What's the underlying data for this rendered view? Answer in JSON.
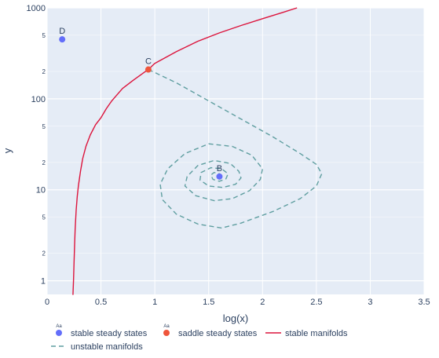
{
  "chart_data": {
    "type": "line",
    "xlabel": "log(x)",
    "ylabel": "y",
    "xlim": [
      0,
      3.5
    ],
    "ylim_log10": [
      -0.15,
      3.0
    ],
    "y_scale": "log",
    "grid": true,
    "legend_placement": "bottom-left",
    "background": "#e5ecf6",
    "x_ticks": [
      "0",
      "0.5",
      "1",
      "1.5",
      "2",
      "2.5",
      "3",
      "3.5"
    ],
    "y_major_ticks": [
      {
        "value": 1,
        "label": "1"
      },
      {
        "value": 10,
        "label": "10"
      },
      {
        "value": 100,
        "label": "100"
      },
      {
        "value": 1000,
        "label": "1000"
      }
    ],
    "y_minor_ticks": [
      {
        "value": 2,
        "label": "2"
      },
      {
        "value": 5,
        "label": "5"
      },
      {
        "value": 20,
        "label": "2"
      },
      {
        "value": 50,
        "label": "5"
      },
      {
        "value": 200,
        "label": "2"
      },
      {
        "value": 500,
        "label": "5"
      }
    ],
    "points": [
      {
        "name": "D",
        "x": 0.14,
        "y": 450,
        "kind": "stable",
        "color": "#636efa"
      },
      {
        "name": "C",
        "x": 0.94,
        "y": 210,
        "kind": "saddle",
        "color": "#ef553b"
      },
      {
        "name": "B",
        "x": 1.6,
        "y": 14,
        "kind": "stable",
        "color": "#636efa"
      }
    ],
    "series": [
      {
        "name": "stable manifolds",
        "color": "#dc143c",
        "dash": "solid",
        "x": [
          0.24,
          0.245,
          0.25,
          0.255,
          0.26,
          0.27,
          0.28,
          0.29,
          0.31,
          0.33,
          0.36,
          0.4,
          0.45,
          0.5,
          0.55,
          0.6,
          0.7,
          0.8,
          0.9,
          0.94,
          1.0,
          1.2,
          1.4,
          1.6,
          1.8,
          2.0,
          2.2,
          2.32
        ],
        "y": [
          0.7,
          1.0,
          1.6,
          2.5,
          3.7,
          6.0,
          8.5,
          11,
          16,
          22,
          30,
          40,
          52,
          62,
          78,
          95,
          130,
          160,
          195,
          210,
          245,
          330,
          430,
          530,
          640,
          760,
          900,
          1000
        ]
      },
      {
        "name": "unstable manifolds",
        "color": "#5f9ea0",
        "dash": "dashed",
        "x": [
          0.94,
          1.2,
          1.5,
          1.8,
          2.1,
          2.35,
          2.5,
          2.55,
          2.5,
          2.35,
          2.1,
          1.8,
          1.62,
          1.4,
          1.2,
          1.07,
          1.05,
          1.12,
          1.28,
          1.5,
          1.72,
          1.9,
          2.0,
          1.98,
          1.88,
          1.72,
          1.55,
          1.38,
          1.28,
          1.3,
          1.4,
          1.55,
          1.7,
          1.78,
          1.8,
          1.75,
          1.63,
          1.5,
          1.42,
          1.43,
          1.52,
          1.62,
          1.68,
          1.66,
          1.6,
          1.54,
          1.52,
          1.55,
          1.6,
          1.62,
          1.6
        ],
        "y": [
          210,
          150,
          95,
          60,
          38,
          25,
          19,
          15,
          11,
          8.0,
          5.8,
          4.3,
          3.8,
          4.2,
          5.4,
          7.8,
          11.5,
          17,
          25,
          32,
          30,
          24,
          17,
          13,
          9.8,
          8.0,
          7.6,
          8.6,
          11,
          14,
          18.5,
          21,
          19.5,
          16,
          13.5,
          11.5,
          10.6,
          11,
          12.8,
          15.5,
          17.5,
          17,
          15,
          13.2,
          12.4,
          13,
          14.5,
          15.5,
          15,
          14.2,
          14
        ]
      }
    ],
    "legend": [
      {
        "label": "stable steady states",
        "marker": "dot",
        "color": "#636efa",
        "tag": "Aa"
      },
      {
        "label": "saddle steady states",
        "marker": "dot",
        "color": "#ef553b",
        "tag": "Aa"
      },
      {
        "label": "stable manifolds",
        "marker": "line",
        "color": "#dc143c"
      },
      {
        "label": "unstable manifolds",
        "marker": "dash",
        "color": "#5f9ea0"
      }
    ]
  }
}
